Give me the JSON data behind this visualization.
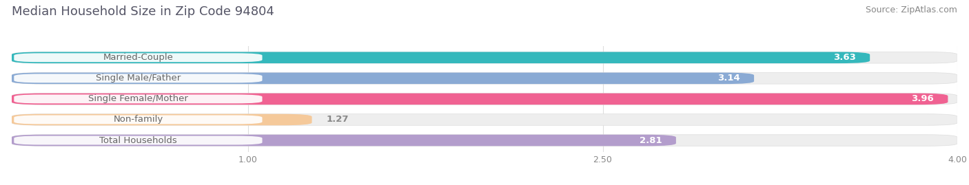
{
  "title": "Median Household Size in Zip Code 94804",
  "source": "Source: ZipAtlas.com",
  "categories": [
    "Married-Couple",
    "Single Male/Father",
    "Single Female/Mother",
    "Non-family",
    "Total Households"
  ],
  "values": [
    3.63,
    3.14,
    3.96,
    1.27,
    2.81
  ],
  "bar_colors": [
    "#35b8bc",
    "#8aaad4",
    "#f06292",
    "#f5c99a",
    "#b39dcc"
  ],
  "value_colors": [
    "white",
    "white",
    "white",
    "#888888",
    "white"
  ],
  "label_text_color": "#666666",
  "bg_color": "#ffffff",
  "bar_bg_color": "#eeeeee",
  "xlim": [
    0.0,
    4.0
  ],
  "xmin": 0.0,
  "xticks": [
    1.0,
    2.5,
    4.0
  ],
  "title_fontsize": 13,
  "source_fontsize": 9,
  "label_fontsize": 9.5,
  "value_fontsize": 9.5,
  "bar_height": 0.55,
  "bar_gap": 0.3
}
